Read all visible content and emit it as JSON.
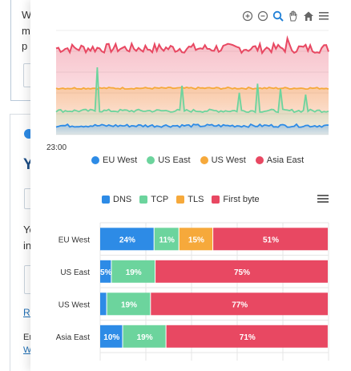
{
  "background": {
    "card1_lines": [
      "W",
      "m",
      "p"
    ],
    "card2_heading": "Y",
    "card2_lines": [
      "Yo",
      "in"
    ],
    "link_text": "Re",
    "footer_lines": [
      "Er",
      "W"
    ]
  },
  "toolbar": {
    "tools": [
      "zoom-in",
      "zoom-out",
      "magnifier",
      "pan",
      "home",
      "menu"
    ]
  },
  "line_chart": {
    "type": "line",
    "x_tick_label": "23:00",
    "series": [
      {
        "name": "EU West",
        "color": "#2d8be6",
        "level": 15
      },
      {
        "name": "US East",
        "color": "#6cd49d",
        "level": 40
      },
      {
        "name": "US West",
        "color": "#f6a93b",
        "level": 78
      },
      {
        "name": "Asia East",
        "color": "#e84862",
        "level": 145
      }
    ],
    "ylim": [
      0,
      175
    ],
    "grid": true,
    "legend_position": "bottom"
  },
  "bar_legend": [
    {
      "name": "DNS",
      "color": "#2d8be6"
    },
    {
      "name": "TCP",
      "color": "#6cd49d"
    },
    {
      "name": "TLS",
      "color": "#f6a93b"
    },
    {
      "name": "First byte",
      "color": "#e84862"
    }
  ],
  "chart_data": {
    "type": "bar",
    "stacked": true,
    "orientation": "horizontal",
    "categories": [
      "EU West",
      "US East",
      "US West",
      "Asia East"
    ],
    "series": [
      {
        "name": "DNS",
        "values": [
          24,
          5,
          3,
          10
        ]
      },
      {
        "name": "TCP",
        "values": [
          11,
          19,
          19,
          19
        ]
      },
      {
        "name": "TLS",
        "values": [
          15,
          0,
          0,
          0
        ]
      },
      {
        "name": "First byte",
        "values": [
          51,
          75,
          77,
          71
        ]
      }
    ],
    "data_labels": [
      [
        "24%",
        "11%",
        "15%",
        "51%"
      ],
      [
        "5%",
        "19%",
        "",
        "75%"
      ],
      [
        "",
        "19%",
        "",
        "77%"
      ],
      [
        "10%",
        "19%",
        "",
        "71%"
      ]
    ],
    "xlim": [
      0,
      100
    ],
    "legend_position": "top"
  }
}
